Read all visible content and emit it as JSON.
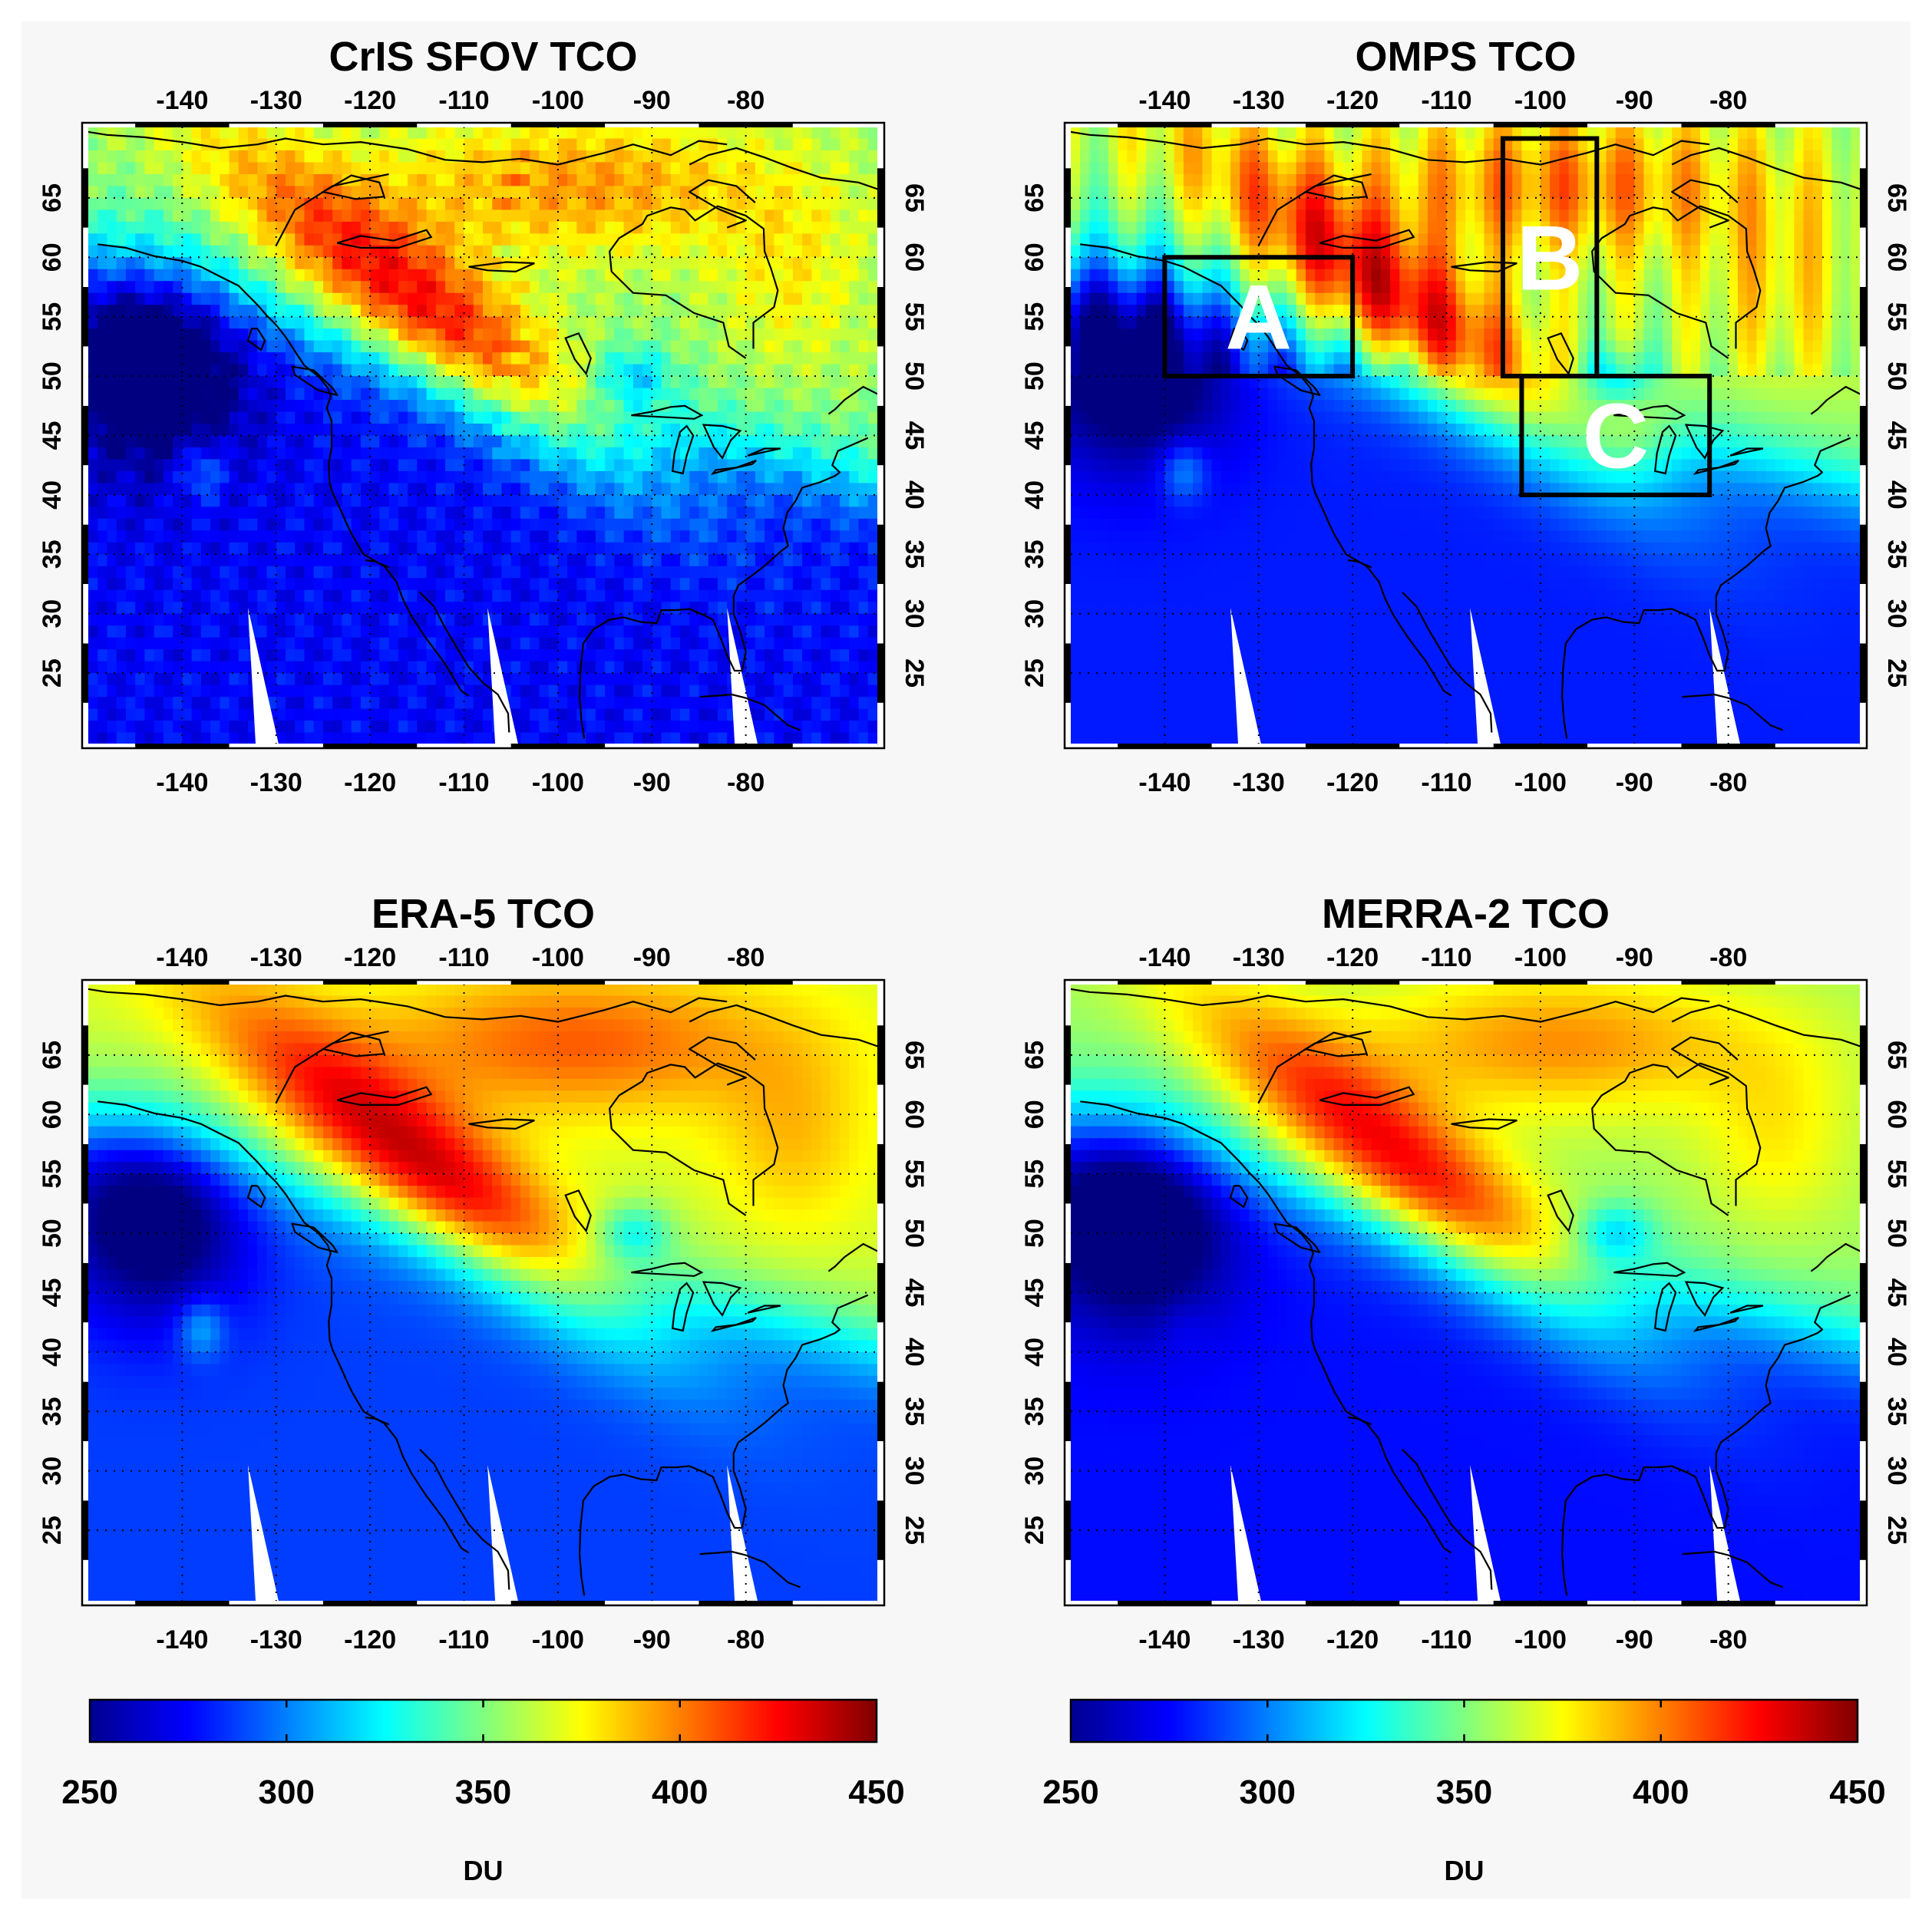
{
  "panels": [
    {
      "title": "CrIS SFOV TCO",
      "field": "cris"
    },
    {
      "title": "OMPS TCO",
      "field": "omps"
    },
    {
      "title": "ERA-5 TCO",
      "field": "era5"
    },
    {
      "title": "MERRA-2 TCO",
      "field": "merra2"
    }
  ],
  "map": {
    "lon_range": [
      -150,
      -66
    ],
    "lat_range": [
      19,
      71
    ],
    "lon_ticks": [
      -140,
      -130,
      -120,
      -110,
      -100,
      -90,
      -80
    ],
    "lat_ticks": [
      25,
      30,
      35,
      40,
      45,
      50,
      55,
      60,
      65
    ],
    "gridlines": "dotted"
  },
  "colorbar": {
    "ticks": [
      250,
      300,
      350,
      400,
      450
    ],
    "unit": "DU",
    "colormap": "jet",
    "range": [
      250,
      450
    ]
  },
  "regions": [
    {
      "label": "A",
      "lon": [
        -140,
        -120
      ],
      "lat": [
        50,
        60
      ]
    },
    {
      "label": "B",
      "lon": [
        -104,
        -94
      ],
      "lat": [
        50,
        70
      ]
    },
    {
      "label": "C",
      "lon": [
        -102,
        -82
      ],
      "lat": [
        40,
        50
      ]
    }
  ]
}
